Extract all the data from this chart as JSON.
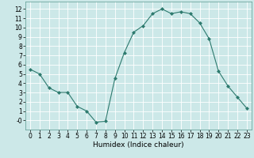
{
  "x": [
    0,
    1,
    2,
    3,
    4,
    5,
    6,
    7,
    8,
    9,
    10,
    11,
    12,
    13,
    14,
    15,
    16,
    17,
    18,
    19,
    20,
    21,
    22,
    23
  ],
  "y": [
    5.5,
    5.0,
    3.5,
    3.0,
    3.0,
    1.5,
    1.0,
    -0.2,
    -0.1,
    4.5,
    7.3,
    9.5,
    10.2,
    11.5,
    12.0,
    11.5,
    11.7,
    11.5,
    10.5,
    8.8,
    5.3,
    3.7,
    2.5,
    1.3
  ],
  "line_color": "#2d7a6e",
  "marker": "D",
  "marker_size": 2.0,
  "bg_color": "#cce8e8",
  "grid_color": "#ffffff",
  "xlabel": "Humidex (Indice chaleur)",
  "xlim": [
    -0.5,
    23.5
  ],
  "ylim": [
    -1.0,
    12.8
  ],
  "yticks": [
    0,
    1,
    2,
    3,
    4,
    5,
    6,
    7,
    8,
    9,
    10,
    11,
    12
  ],
  "xticks": [
    0,
    1,
    2,
    3,
    4,
    5,
    6,
    7,
    8,
    9,
    10,
    11,
    12,
    13,
    14,
    15,
    16,
    17,
    18,
    19,
    20,
    21,
    22,
    23
  ],
  "label_fontsize": 6.5,
  "tick_fontsize": 5.5
}
